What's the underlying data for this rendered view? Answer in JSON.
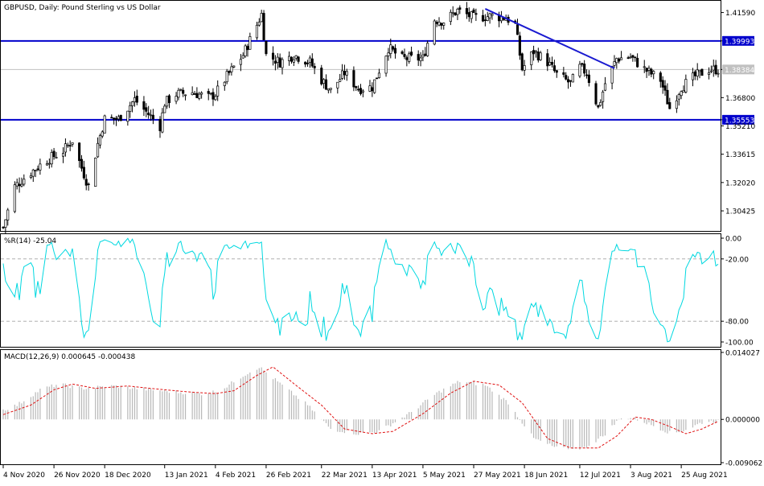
{
  "chart_data": [
    {
      "pane": "price",
      "type": "candlestick",
      "title": "GBPUSD, Daily:  Pound Sterling vs US Dollar",
      "ylim": [
        1.2925,
        1.4225
      ],
      "y_ticks": [
        1.4159,
        1.39993,
        1.38384,
        1.368,
        1.35553,
        1.3521,
        1.33615,
        1.3202,
        1.30425
      ],
      "y_tick_labels": [
        "1.41590",
        "1.39993",
        "1.38384",
        "1.36800",
        "1.35553",
        "1.35210",
        "1.33615",
        "1.32020",
        "1.30425"
      ],
      "close_path": [
        [
          "2020-11-04",
          1.295
        ],
        [
          "2020-11-09",
          1.318
        ],
        [
          "2020-11-16",
          1.326
        ],
        [
          "2020-11-23",
          1.333
        ],
        [
          "2020-11-30",
          1.338
        ],
        [
          "2020-12-04",
          1.344
        ],
        [
          "2020-12-07",
          1.332
        ],
        [
          "2020-12-11",
          1.318
        ],
        [
          "2020-12-15",
          1.342
        ],
        [
          "2020-12-18",
          1.356
        ],
        [
          "2020-12-24",
          1.356
        ],
        [
          "2020-12-31",
          1.367
        ],
        [
          "2021-01-05",
          1.36
        ],
        [
          "2021-01-11",
          1.352
        ],
        [
          "2021-01-13",
          1.365
        ],
        [
          "2021-01-18",
          1.37
        ],
        [
          "2021-01-25",
          1.371
        ],
        [
          "2021-02-01",
          1.368
        ],
        [
          "2021-02-04",
          1.37
        ],
        [
          "2021-02-09",
          1.38
        ],
        [
          "2021-02-16",
          1.392
        ],
        [
          "2021-02-22",
          1.409
        ],
        [
          "2021-02-24",
          1.415
        ],
        [
          "2021-02-26",
          1.392
        ],
        [
          "2021-03-04",
          1.388
        ],
        [
          "2021-03-10",
          1.392
        ],
        [
          "2021-03-17",
          1.388
        ],
        [
          "2021-03-22",
          1.378
        ],
        [
          "2021-03-26",
          1.372
        ],
        [
          "2021-04-01",
          1.382
        ],
        [
          "2021-04-07",
          1.373
        ],
        [
          "2021-04-13",
          1.374
        ],
        [
          "2021-04-20",
          1.396
        ],
        [
          "2021-04-26",
          1.39
        ],
        [
          "2021-05-05",
          1.39
        ],
        [
          "2021-05-10",
          1.412
        ],
        [
          "2021-05-14",
          1.411
        ],
        [
          "2021-05-20",
          1.417
        ],
        [
          "2021-05-27",
          1.413
        ],
        [
          "2021-06-04",
          1.414
        ],
        [
          "2021-06-10",
          1.413
        ],
        [
          "2021-06-14",
          1.409
        ],
        [
          "2021-06-17",
          1.384
        ],
        [
          "2021-06-22",
          1.394
        ],
        [
          "2021-06-28",
          1.388
        ],
        [
          "2021-07-02",
          1.381
        ],
        [
          "2021-07-08",
          1.376
        ],
        [
          "2021-07-12",
          1.385
        ],
        [
          "2021-07-15",
          1.382
        ],
        [
          "2021-07-20",
          1.362
        ],
        [
          "2021-07-23",
          1.376
        ],
        [
          "2021-07-28",
          1.39
        ],
        [
          "2021-08-03",
          1.391
        ],
        [
          "2021-08-09",
          1.384
        ],
        [
          "2021-08-16",
          1.378
        ],
        [
          "2021-08-20",
          1.362
        ],
        [
          "2021-08-25",
          1.374
        ],
        [
          "2021-08-31",
          1.38
        ],
        [
          "2021-09-06",
          1.384
        ],
        [
          "2021-09-10",
          1.3838
        ]
      ],
      "horizontal_lines": [
        {
          "value": 1.39993,
          "label": "1.39993",
          "color": "#0000cc",
          "style": "solid"
        },
        {
          "value": 1.35553,
          "label": "1.35553",
          "color": "#0000cc",
          "style": "solid"
        },
        {
          "value": 1.38384,
          "label": "1.38384",
          "color": "#c0c0c0",
          "style": "bid-line"
        }
      ],
      "trend_line": {
        "from": [
          "2021-06-01",
          1.418
        ],
        "to": [
          "2021-07-27",
          1.3845
        ],
        "color": "#1a1ad0"
      },
      "candle_colors": {
        "bull": "#ffffff",
        "bear": "#000000",
        "outline": "#000000"
      }
    },
    {
      "pane": "williams_r",
      "type": "line",
      "title": "%R(14) -25.04",
      "indicator": "%R(14)",
      "last_value": -25.04,
      "ylim": [
        -100,
        0
      ],
      "y_tick_labels": [
        "0.00",
        "-20.00",
        "-80.00",
        "-100.00"
      ],
      "levels": [
        -20,
        -80
      ],
      "line_color": "#00d8e0"
    },
    {
      "pane": "macd",
      "type": "histogram+line",
      "title": "MACD(12,26,9) 0.000645 -0.000438",
      "indicator": "MACD(12,26,9)",
      "main_value": 0.000645,
      "signal_value": -0.000438,
      "ylim": [
        -0.009062,
        0.014027
      ],
      "y_tick_labels": [
        "0.014027",
        "0.000000",
        "-0.009062"
      ],
      "histogram_color": "#b8b8b8",
      "signal_color": "#e01010",
      "signal_path": [
        [
          "2020-11-04",
          0.001
        ],
        [
          "2020-11-16",
          0.003
        ],
        [
          "2020-11-26",
          0.0062
        ],
        [
          "2020-12-04",
          0.0074
        ],
        [
          "2020-12-14",
          0.0065
        ],
        [
          "2020-12-28",
          0.007
        ],
        [
          "2021-01-13",
          0.0062
        ],
        [
          "2021-01-25",
          0.0057
        ],
        [
          "2021-02-04",
          0.0054
        ],
        [
          "2021-02-12",
          0.006
        ],
        [
          "2021-02-22",
          0.0092
        ],
        [
          "2021-03-01",
          0.011
        ],
        [
          "2021-03-10",
          0.0075
        ],
        [
          "2021-03-22",
          0.003
        ],
        [
          "2021-04-01",
          -0.002
        ],
        [
          "2021-04-13",
          -0.003
        ],
        [
          "2021-04-22",
          -0.0025
        ],
        [
          "2021-05-05",
          0.0012
        ],
        [
          "2021-05-17",
          0.0055
        ],
        [
          "2021-05-27",
          0.008
        ],
        [
          "2021-06-07",
          0.0072
        ],
        [
          "2021-06-17",
          0.0035
        ],
        [
          "2021-06-28",
          -0.004
        ],
        [
          "2021-07-08",
          -0.006
        ],
        [
          "2021-07-20",
          -0.006
        ],
        [
          "2021-07-28",
          -0.0035
        ],
        [
          "2021-08-05",
          0.0005
        ],
        [
          "2021-08-12",
          0.0
        ],
        [
          "2021-08-20",
          -0.0015
        ],
        [
          "2021-08-27",
          -0.003
        ],
        [
          "2021-09-03",
          -0.002
        ],
        [
          "2021-09-10",
          -0.0004
        ]
      ]
    }
  ],
  "x_axis": {
    "labels": [
      "4 Nov 2020",
      "26 Nov 2020",
      "18 Dec 2020",
      "13 Jan 2021",
      "4 Feb 2021",
      "26 Feb 2021",
      "22 Mar 2021",
      "13 Apr 2021",
      "5 May 2021",
      "27 May 2021",
      "18 Jun 2021",
      "12 Jul 2021",
      "3 Aug 2021",
      "25 Aug 2021"
    ]
  }
}
